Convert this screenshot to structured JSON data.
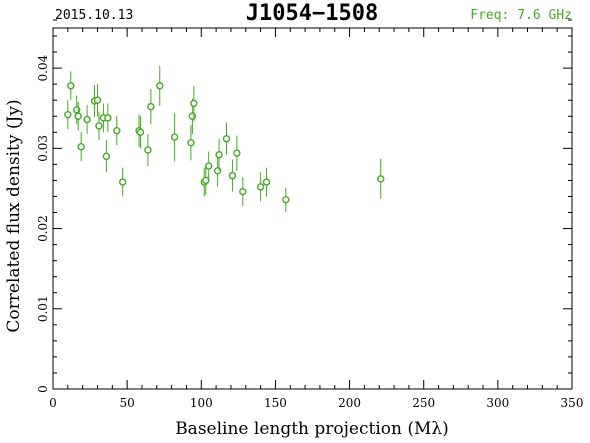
{
  "header": {
    "date": "2015.10.13",
    "source": "J1054−1508",
    "freq": "Freq: 7.6 GHz"
  },
  "colors": {
    "series": "#44aa22",
    "axes": "#000000"
  },
  "chart_data": {
    "type": "scatter",
    "title": "J1054−1508",
    "xlabel": "Baseline length projection (Mλ)",
    "ylabel": "Correlated flux density (Jy)",
    "xlim": [
      0,
      350
    ],
    "ylim": [
      0,
      0.045
    ],
    "x_ticks": [
      0,
      50,
      100,
      150,
      200,
      250,
      300,
      350
    ],
    "y_ticks": [
      0,
      0.01,
      0.02,
      0.03,
      0.04
    ],
    "x_tick_labels": [
      "0",
      "50",
      "100",
      "150",
      "200",
      "250",
      "300",
      "350"
    ],
    "y_tick_labels": [
      "0",
      "0.01",
      "0.02",
      "0.03",
      "0.04"
    ],
    "grid": false,
    "points": [
      {
        "x": 10,
        "y": 0.0342,
        "err": 0.0018
      },
      {
        "x": 12,
        "y": 0.0378,
        "err": 0.0018
      },
      {
        "x": 16,
        "y": 0.0348,
        "err": 0.0018
      },
      {
        "x": 17,
        "y": 0.034,
        "err": 0.0018
      },
      {
        "x": 19,
        "y": 0.0302,
        "err": 0.0018
      },
      {
        "x": 23,
        "y": 0.0336,
        "err": 0.0018
      },
      {
        "x": 28,
        "y": 0.0359,
        "err": 0.002
      },
      {
        "x": 30,
        "y": 0.036,
        "err": 0.002
      },
      {
        "x": 31,
        "y": 0.0328,
        "err": 0.0018
      },
      {
        "x": 34,
        "y": 0.0338,
        "err": 0.0018
      },
      {
        "x": 36,
        "y": 0.029,
        "err": 0.002
      },
      {
        "x": 37,
        "y": 0.0338,
        "err": 0.0018
      },
      {
        "x": 43,
        "y": 0.0322,
        "err": 0.0018
      },
      {
        "x": 47,
        "y": 0.0258,
        "err": 0.0018
      },
      {
        "x": 58,
        "y": 0.0322,
        "err": 0.002
      },
      {
        "x": 59,
        "y": 0.032,
        "err": 0.002
      },
      {
        "x": 64,
        "y": 0.0298,
        "err": 0.002
      },
      {
        "x": 66,
        "y": 0.0352,
        "err": 0.0022
      },
      {
        "x": 72,
        "y": 0.0378,
        "err": 0.0025
      },
      {
        "x": 82,
        "y": 0.0314,
        "err": 0.003
      },
      {
        "x": 93,
        "y": 0.0307,
        "err": 0.0022
      },
      {
        "x": 94,
        "y": 0.034,
        "err": 0.0022
      },
      {
        "x": 95,
        "y": 0.0356,
        "err": 0.0022
      },
      {
        "x": 102,
        "y": 0.0258,
        "err": 0.0018
      },
      {
        "x": 103,
        "y": 0.026,
        "err": 0.0018
      },
      {
        "x": 105,
        "y": 0.0278,
        "err": 0.0018
      },
      {
        "x": 111,
        "y": 0.0272,
        "err": 0.002
      },
      {
        "x": 112,
        "y": 0.0292,
        "err": 0.002
      },
      {
        "x": 117,
        "y": 0.0312,
        "err": 0.002
      },
      {
        "x": 121,
        "y": 0.0266,
        "err": 0.002
      },
      {
        "x": 124,
        "y": 0.0294,
        "err": 0.0022
      },
      {
        "x": 128,
        "y": 0.0246,
        "err": 0.0018
      },
      {
        "x": 140,
        "y": 0.0252,
        "err": 0.0018
      },
      {
        "x": 144,
        "y": 0.0258,
        "err": 0.0018
      },
      {
        "x": 157,
        "y": 0.0236,
        "err": 0.0015
      },
      {
        "x": 221,
        "y": 0.0262,
        "err": 0.0025
      }
    ]
  }
}
